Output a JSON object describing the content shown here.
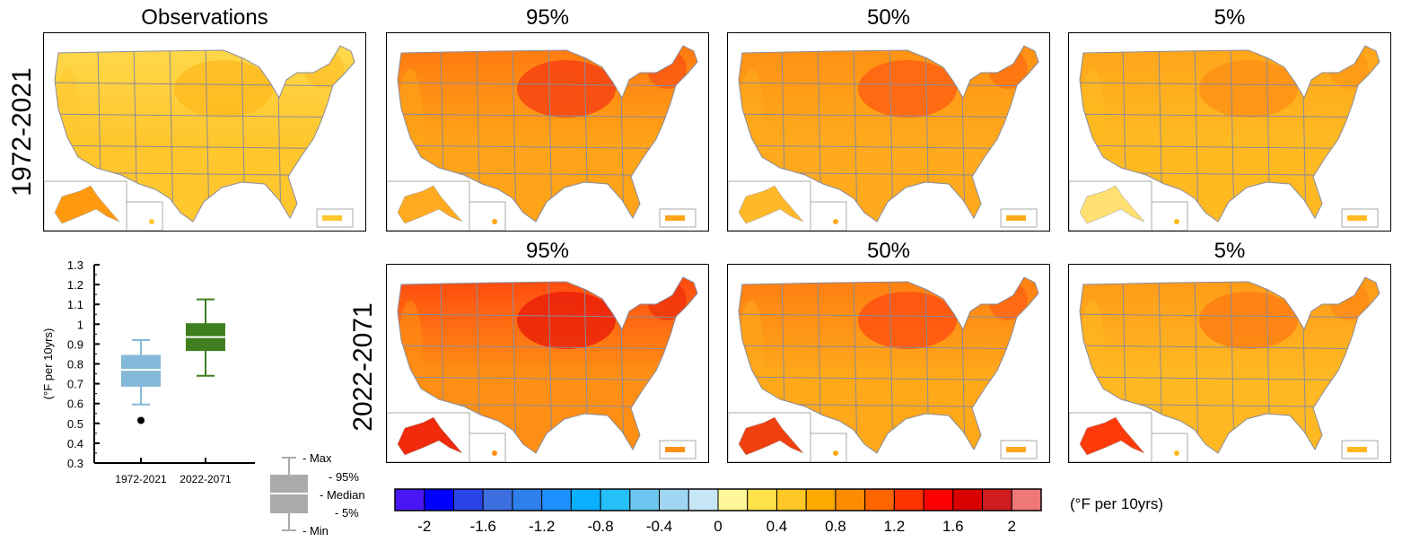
{
  "row_labels": [
    "1972-2021",
    "2022-2071"
  ],
  "panels": [
    {
      "title": "Observations",
      "row": 0,
      "col": 0,
      "base": "#FFC62E",
      "north": "#FFD84A",
      "hot": "#FFB81E",
      "ak": "#FF9A10"
    },
    {
      "title": "95%",
      "row": 0,
      "col": 1,
      "base": "#FFA318",
      "north": "#FF7A10",
      "hot": "#F53A12",
      "ak": "#FFAA20"
    },
    {
      "title": "50%",
      "row": 0,
      "col": 2,
      "base": "#FFAA1C",
      "north": "#FF9014",
      "hot": "#FF5A10",
      "ak": "#FFB828"
    },
    {
      "title": "5%",
      "row": 0,
      "col": 3,
      "base": "#FFBA22",
      "north": "#FFA51A",
      "hot": "#FF8E14",
      "ak": "#FFE070"
    },
    {
      "title": "95%",
      "row": 1,
      "col": 1,
      "base": "#FF8F14",
      "north": "#FF4A10",
      "hot": "#E81808",
      "ak": "#F02A0A"
    },
    {
      "title": "50%",
      "row": 1,
      "col": 2,
      "base": "#FFA81A",
      "north": "#FF7E12",
      "hot": "#FF4A10",
      "ak": "#F04010"
    },
    {
      "title": "5%",
      "row": 1,
      "col": 3,
      "base": "#FFB822",
      "north": "#FF9A18",
      "hot": "#FF7A12",
      "ak": "#FF3A0A"
    }
  ],
  "chart_data": [
    {
      "type": "box",
      "ylabel": "(°F per 10yrs)",
      "ylim": [
        0.3,
        1.3
      ],
      "yticks": [
        "1.3",
        "1.2",
        "1.1",
        "1",
        "0.9",
        "0.8",
        "0.7",
        "0.6",
        "0.5",
        "0.4",
        "0.3"
      ],
      "categories": [
        "1972-2021",
        "2022-2071"
      ],
      "series": [
        {
          "name": "1972-2021",
          "color": "#85B9D9",
          "min": 0.595,
          "p5": 0.685,
          "median": 0.77,
          "p95": 0.845,
          "max": 0.92,
          "outliers": [
            0.515
          ]
        },
        {
          "name": "2022-2071",
          "color": "#3F7F1F",
          "min": 0.74,
          "p5": 0.865,
          "median": 0.935,
          "p95": 1.005,
          "max": 1.125,
          "outliers": []
        }
      ],
      "legend": {
        "labels": [
          "- Max",
          "- 95%",
          "- Median",
          "- 5%",
          "- Min"
        ],
        "color": "#AAAAAA"
      }
    },
    {
      "type": "colorbar",
      "unit_label": "(°F per 10yrs)",
      "range": [
        -2.2,
        2.2
      ],
      "step": 0.2,
      "ticks": [
        "-2",
        "-1.6",
        "-1.2",
        "-0.8",
        "-0.4",
        "0",
        "0.4",
        "0.8",
        "1.2",
        "1.6",
        "2"
      ],
      "colors": [
        "#4B16F5",
        "#0000FF",
        "#2A44E8",
        "#3E6FE0",
        "#2E7FEB",
        "#1E90FF",
        "#0AB0FF",
        "#25C0F8",
        "#6CC6F0",
        "#A0D6F2",
        "#C6E6F6",
        "#FFF799",
        "#FFE34A",
        "#FFC826",
        "#FFAA00",
        "#FF8C00",
        "#FF6600",
        "#FF3300",
        "#FF0000",
        "#D80000",
        "#D01E1E",
        "#EE7777"
      ]
    }
  ]
}
